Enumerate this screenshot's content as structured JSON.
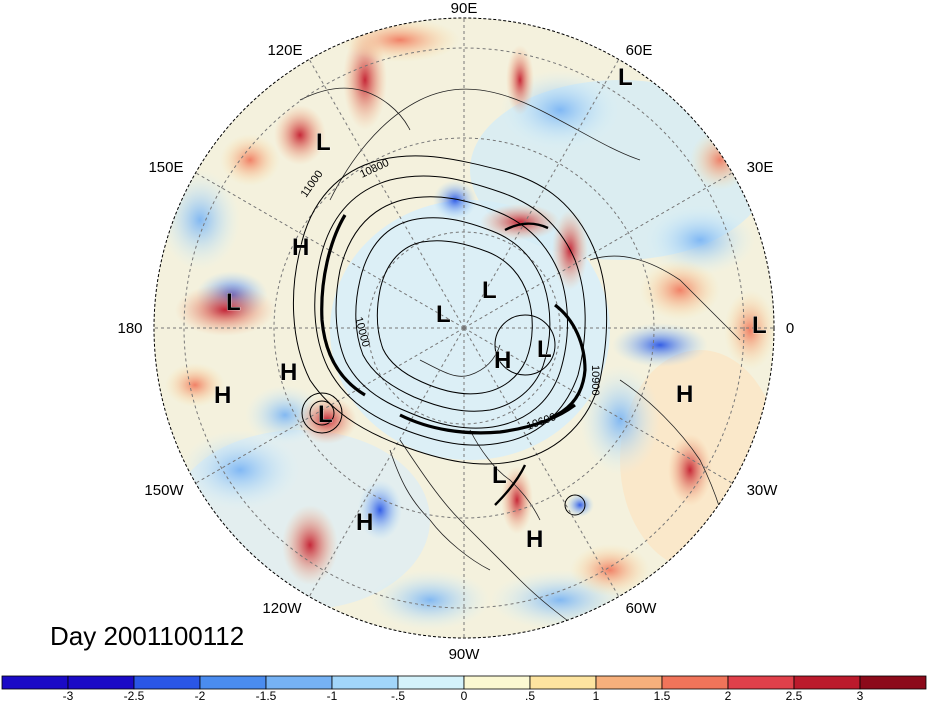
{
  "map": {
    "day_label": "Day 2001100112",
    "longitude_labels": [
      "90E",
      "60E",
      "30E",
      "0",
      "30W",
      "60W",
      "90W",
      "120W",
      "150W",
      "180",
      "150E",
      "120E"
    ],
    "pressure_systems": [
      {
        "type": "L",
        "lon_deg": 60
      },
      {
        "type": "L",
        "lon_deg": 110
      },
      {
        "type": "H",
        "lon_deg": 140
      },
      {
        "type": "L",
        "lon_deg": 175
      },
      {
        "type": "H",
        "lon_deg": 195
      },
      {
        "type": "H",
        "lon_deg": 200
      },
      {
        "type": "L",
        "lon_deg": 208
      },
      {
        "type": "H",
        "lon_deg": 235
      },
      {
        "type": "L",
        "lon_deg": 305
      },
      {
        "type": "H",
        "lon_deg": 310
      },
      {
        "type": "H",
        "lon_deg": 340
      },
      {
        "type": "L",
        "lon_deg": 0
      },
      {
        "type": "L",
        "lon_deg": 90
      },
      {
        "type": "L",
        "lon_deg": 60
      },
      {
        "type": "H",
        "lon_deg": 260
      },
      {
        "type": "L",
        "lon_deg": 10
      }
    ],
    "contour_labels": [
      "11000",
      "10800",
      "10000",
      "10600",
      "10900"
    ],
    "colors": {
      "grid": "#777777",
      "contour": "#000000"
    }
  },
  "colorbar": {
    "tick_labels": [
      "-3",
      "-2.5",
      "-2",
      "-1.5",
      "-1",
      "-.5",
      "0",
      ".5",
      "1",
      "1.5",
      "2",
      "2.5",
      "3"
    ],
    "colors": [
      "#1a0ac6",
      "#2a56e6",
      "#4a8cef",
      "#76b2f4",
      "#a2d6fa",
      "#d4f2fb",
      "#fbf8d2",
      "#fde4a0",
      "#f7b07c",
      "#f0745a",
      "#e0404a",
      "#bb1a2c",
      "#8c0a1a"
    ]
  }
}
